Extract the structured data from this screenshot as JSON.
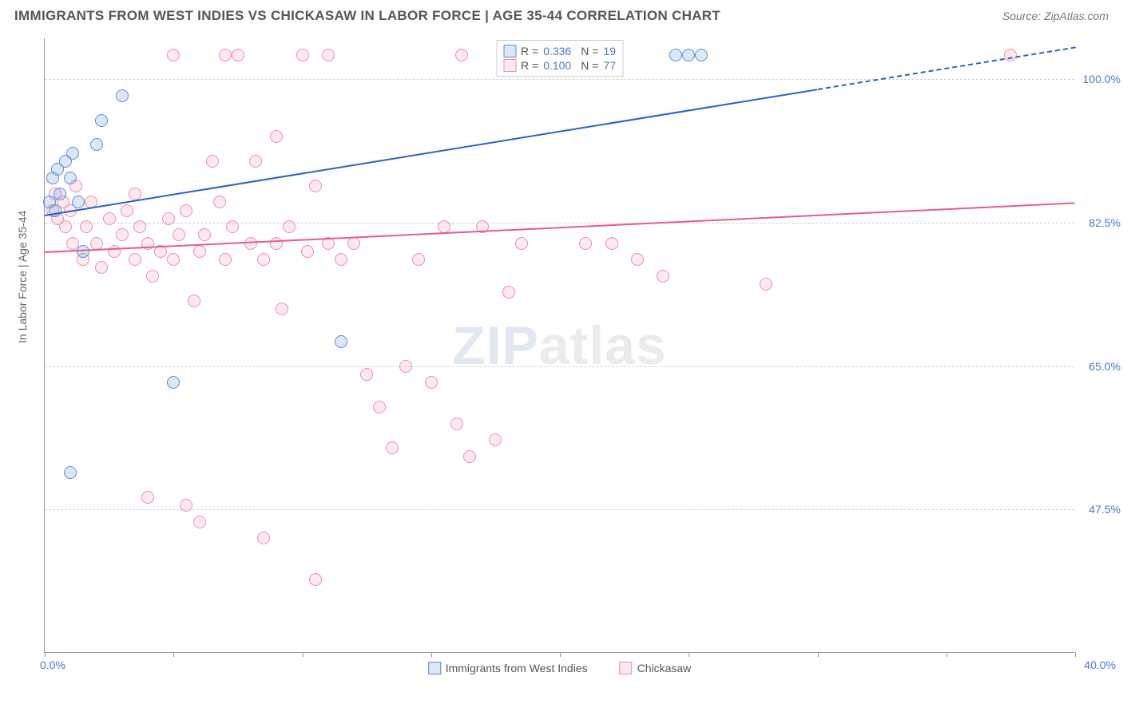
{
  "title": "IMMIGRANTS FROM WEST INDIES VS CHICKASAW IN LABOR FORCE | AGE 35-44 CORRELATION CHART",
  "source": "Source: ZipAtlas.com",
  "ylabel": "In Labor Force | Age 35-44",
  "watermark_a": "ZIP",
  "watermark_b": "atlas",
  "chart": {
    "type": "scatter",
    "xlim": [
      0,
      40
    ],
    "ylim": [
      30,
      105
    ],
    "xlim_labels": [
      "0.0%",
      "40.0%"
    ],
    "xtick_positions": [
      0,
      5,
      10,
      15,
      20,
      25,
      30,
      35,
      40
    ],
    "ygrid": [
      {
        "v": 100.0,
        "label": "100.0%"
      },
      {
        "v": 82.5,
        "label": "82.5%"
      },
      {
        "v": 65.0,
        "label": "65.0%"
      },
      {
        "v": 47.5,
        "label": "47.5%"
      }
    ],
    "background_color": "#ffffff",
    "grid_color": "#d0d0d0",
    "axis_color": "#999999",
    "marker_radius": 8,
    "series": [
      {
        "name": "Immigrants from West Indies",
        "color": "#6f9fe0",
        "fill": "rgba(111,159,224,0.25)",
        "stroke": "#5a8fd8",
        "trend_color": "#2e5fc9",
        "R": "0.336",
        "N": "19",
        "trend": {
          "x1": 0,
          "y1": 83.5,
          "x2": 40,
          "y2": 104
        },
        "trend_dash_from_x": 30,
        "points": [
          [
            0.2,
            85
          ],
          [
            0.3,
            88
          ],
          [
            0.4,
            84
          ],
          [
            0.5,
            89
          ],
          [
            0.6,
            86
          ],
          [
            0.8,
            90
          ],
          [
            1.0,
            88
          ],
          [
            1.1,
            91
          ],
          [
            1.3,
            85
          ],
          [
            1.5,
            79
          ],
          [
            2.0,
            92
          ],
          [
            2.2,
            95
          ],
          [
            3.0,
            98
          ],
          [
            1.0,
            52
          ],
          [
            5.0,
            63
          ],
          [
            11.5,
            68
          ],
          [
            24.5,
            103
          ],
          [
            25.5,
            103
          ],
          [
            25.0,
            103
          ]
        ]
      },
      {
        "name": "Chickasaw",
        "color": "#f7a8bc",
        "fill": "rgba(247,168,188,0.25)",
        "stroke": "#ef8fa8",
        "trend_color": "#e75d88",
        "R": "0.100",
        "N": "77",
        "trend": {
          "x1": 0,
          "y1": 79,
          "x2": 40,
          "y2": 85
        },
        "points": [
          [
            0.3,
            84
          ],
          [
            0.4,
            86
          ],
          [
            0.5,
            83
          ],
          [
            0.7,
            85
          ],
          [
            0.8,
            82
          ],
          [
            1.0,
            84
          ],
          [
            1.1,
            80
          ],
          [
            1.2,
            87
          ],
          [
            1.5,
            78
          ],
          [
            1.6,
            82
          ],
          [
            1.8,
            85
          ],
          [
            2.0,
            80
          ],
          [
            2.2,
            77
          ],
          [
            2.5,
            83
          ],
          [
            2.7,
            79
          ],
          [
            3.0,
            81
          ],
          [
            3.2,
            84
          ],
          [
            3.5,
            78
          ],
          [
            3.7,
            82
          ],
          [
            4.0,
            80
          ],
          [
            4.2,
            76
          ],
          [
            4.5,
            79
          ],
          [
            4.8,
            83
          ],
          [
            5.0,
            78
          ],
          [
            5.2,
            81
          ],
          [
            5.5,
            84
          ],
          [
            5.8,
            73
          ],
          [
            6.0,
            79
          ],
          [
            6.2,
            81
          ],
          [
            6.5,
            90
          ],
          [
            6.8,
            85
          ],
          [
            7.0,
            78
          ],
          [
            7.3,
            82
          ],
          [
            7.5,
            103
          ],
          [
            8.0,
            80
          ],
          [
            8.2,
            90
          ],
          [
            8.5,
            78
          ],
          [
            9.0,
            80
          ],
          [
            9.2,
            72
          ],
          [
            9.5,
            82
          ],
          [
            10.0,
            103
          ],
          [
            10.2,
            79
          ],
          [
            10.5,
            87
          ],
          [
            11.0,
            80
          ],
          [
            11.0,
            103
          ],
          [
            11.5,
            78
          ],
          [
            12.0,
            80
          ],
          [
            12.5,
            64
          ],
          [
            13.0,
            60
          ],
          [
            13.5,
            55
          ],
          [
            14.0,
            65
          ],
          [
            14.5,
            78
          ],
          [
            15.0,
            63
          ],
          [
            15.5,
            82
          ],
          [
            16.0,
            58
          ],
          [
            16.2,
            103
          ],
          [
            16.5,
            54
          ],
          [
            17.0,
            82
          ],
          [
            17.5,
            56
          ],
          [
            18.0,
            74
          ],
          [
            18.5,
            80
          ],
          [
            19.0,
            103
          ],
          [
            21.0,
            80
          ],
          [
            22.0,
            80
          ],
          [
            23.0,
            78
          ],
          [
            24.0,
            76
          ],
          [
            28.0,
            75
          ],
          [
            37.5,
            103
          ],
          [
            5.0,
            103
          ],
          [
            7.0,
            103
          ],
          [
            6.0,
            46
          ],
          [
            10.5,
            39
          ],
          [
            4.0,
            49
          ],
          [
            5.5,
            48
          ],
          [
            8.5,
            44
          ],
          [
            3.5,
            86
          ],
          [
            9.0,
            93
          ]
        ]
      }
    ]
  }
}
